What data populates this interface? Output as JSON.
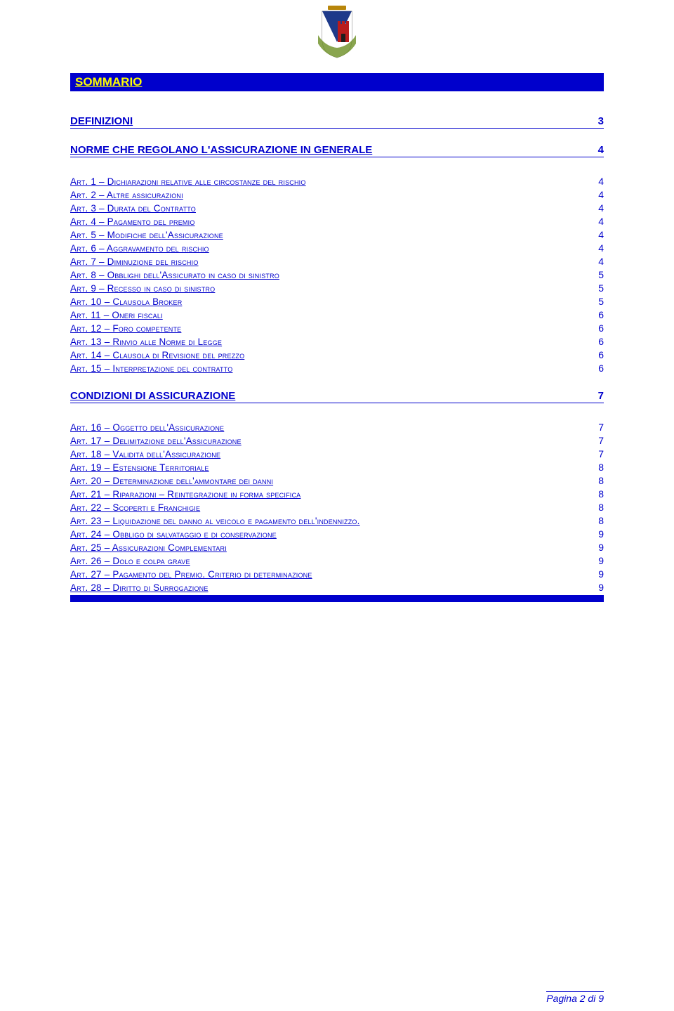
{
  "header": {
    "title": "SOMMARIO"
  },
  "sections": [
    {
      "label": "DEFINIZIONI",
      "page": "3",
      "items": []
    },
    {
      "label": "NORME CHE REGOLANO L'ASSICURAZIONE IN GENERALE",
      "page": "4",
      "items": [
        {
          "label": "Art. 1 – Dichiarazioni relative alle circostanze del rischio",
          "page": "4"
        },
        {
          "label": "Art. 2 – Altre assicurazioni",
          "page": "4"
        },
        {
          "label": "Art. 3 – Durata del Contratto",
          "page": "4"
        },
        {
          "label": "Art. 4 – Pagamento del premio",
          "page": "4"
        },
        {
          "label": "Art. 5 – Modifiche dell'Assicurazione",
          "page": "4"
        },
        {
          "label": "Art. 6 – Aggravamento del rischio",
          "page": "4"
        },
        {
          "label": "Art. 7 – Diminuzione del rischio",
          "page": "4"
        },
        {
          "label": "Art. 8 – Obblighi dell'Assicurato in caso di sinistro",
          "page": "5"
        },
        {
          "label": "Art. 9 – Recesso in caso di sinistro",
          "page": "5"
        },
        {
          "label": "Art. 10 – Clausola Broker",
          "page": "5"
        },
        {
          "label": "Art. 11 – Oneri fiscali",
          "page": "6"
        },
        {
          "label": "Art. 12 – Foro competente",
          "page": "6"
        },
        {
          "label": "Art. 13 – Rinvio alle Norme di Legge",
          "page": "6"
        },
        {
          "label": "Art. 14 – Clausola di Revisione del prezzo",
          "page": "6"
        },
        {
          "label": "Art. 15 – Interpretazione del contratto",
          "page": "6"
        }
      ]
    },
    {
      "label": "CONDIZIONI DI ASSICURAZIONE",
      "page": "7",
      "items": [
        {
          "label": "Art. 16 – Oggetto dell'Assicurazione",
          "page": "7"
        },
        {
          "label": "Art. 17 – Delimitazione dell'Assicurazione",
          "page": "7"
        },
        {
          "label": "Art. 18 – Validità dell'Assicurazione",
          "page": "7"
        },
        {
          "label": "Art. 19 – Estensione Territoriale",
          "page": "8"
        },
        {
          "label": "Art. 20 – Determinazione dell'ammontare dei danni",
          "page": "8"
        },
        {
          "label": "Art. 21 – Riparazioni – Reintegrazione in forma specifica",
          "page": "8"
        },
        {
          "label": "Art. 22 – Scoperti e Franchigie",
          "page": "8"
        },
        {
          "label": "Art. 23 – Liquidazione del danno al veicolo e pagamento dell'indennizzo.",
          "page": "8"
        },
        {
          "label": "Art. 24 – Obbligo di salvataggio e di conservazione",
          "page": "9"
        },
        {
          "label": "Art. 25 – Assicurazioni Complementari",
          "page": "9"
        },
        {
          "label": "Art. 26 – Dolo e colpa grave",
          "page": "9"
        },
        {
          "label": "Art. 27 – Pagamento del Premio. Criterio di determinazione",
          "page": "9"
        },
        {
          "label": "Art. 28 – Diritto di Surrogazione",
          "page": "9"
        }
      ]
    }
  ],
  "footer": {
    "text": "Pagina 2 di 9"
  },
  "colors": {
    "blue": "#0000cc",
    "yellow": "#ffff00",
    "shield_blue": "#1e3a8a",
    "shield_red": "#b91c1c",
    "shield_brown": "#78350f",
    "shield_white": "#ffffff"
  }
}
